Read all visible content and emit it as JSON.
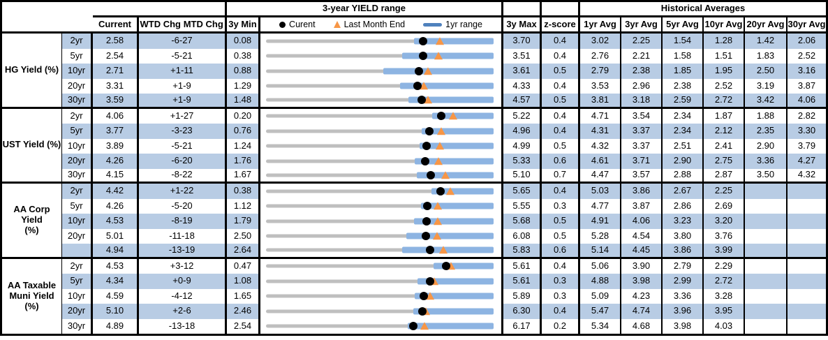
{
  "header": {
    "range_title": "3-year YIELD range",
    "hist_title": "Historical Averages",
    "current": "Current",
    "wtd": "WTD Chg",
    "mtd": "MTD Chg",
    "min": "3y Min",
    "max": "3y Max",
    "zscore": "z-score",
    "avg_cols": [
      "1yr Avg",
      "3yr Avg",
      "5yr Avg",
      "10yr Avg",
      "20yr Avg",
      "30yr Avg"
    ],
    "legend_current": "Curent",
    "legend_last_month": "Last Month End",
    "legend_range": "1yr range"
  },
  "colors": {
    "stripe": "#B8CCE4",
    "track_3y": "#BFBFBF",
    "bar_1yr": "#8DB4E2",
    "legend_bar": "#4F81BD",
    "marker_current": "#000000",
    "marker_last_month": "#F79646"
  },
  "chart_data": {
    "type": "range-dot",
    "x_unit": "yield (%)",
    "legend": [
      "Curent (black dot)",
      "Last Month End (orange triangle)",
      "1yr range (blue bar)"
    ],
    "note": "Gray track spans 3y Min to 3y Max per row; blue bar is the 1yr range; dot = current yield; triangle = last month end yield.",
    "sections": [
      {
        "label": "HG Yield (%)",
        "rows": [
          {
            "maturity": "2yr",
            "current": 2.58,
            "wtd_chg": "-6",
            "mtd_chg": "-27",
            "min_3y": 0.08,
            "max_3y": 3.7,
            "z_score": 0.4,
            "last_month_end": 2.85,
            "yr1_low": 2.43,
            "yr1_high": 3.7,
            "averages": [
              "3.02",
              "2.25",
              "1.54",
              "1.28",
              "1.42",
              "2.06"
            ]
          },
          {
            "maturity": "5yr",
            "current": 2.54,
            "wtd_chg": "-5",
            "mtd_chg": "-21",
            "min_3y": 0.38,
            "max_3y": 3.51,
            "z_score": 0.4,
            "last_month_end": 2.75,
            "yr1_low": 2.25,
            "yr1_high": 3.51,
            "averages": [
              "2.76",
              "2.21",
              "1.58",
              "1.51",
              "1.83",
              "2.52"
            ]
          },
          {
            "maturity": "10yr",
            "current": 2.71,
            "wtd_chg": "+1",
            "mtd_chg": "-11",
            "min_3y": 0.88,
            "max_3y": 3.61,
            "z_score": 0.5,
            "last_month_end": 2.82,
            "yr1_low": 2.29,
            "yr1_high": 3.61,
            "averages": [
              "2.79",
              "2.38",
              "1.85",
              "1.95",
              "2.50",
              "3.16"
            ]
          },
          {
            "maturity": "20yr",
            "current": 3.31,
            "wtd_chg": "+1",
            "mtd_chg": "-9",
            "min_3y": 1.29,
            "max_3y": 4.33,
            "z_score": 0.4,
            "last_month_end": 3.4,
            "yr1_low": 3.08,
            "yr1_high": 4.33,
            "averages": [
              "3.53",
              "2.96",
              "2.38",
              "2.52",
              "3.19",
              "3.87"
            ]
          },
          {
            "maturity": "30yr",
            "current": 3.59,
            "wtd_chg": "+1",
            "mtd_chg": "-9",
            "min_3y": 1.48,
            "max_3y": 4.57,
            "z_score": 0.5,
            "last_month_end": 3.68,
            "yr1_low": 3.41,
            "yr1_high": 4.57,
            "averages": [
              "3.81",
              "3.18",
              "2.59",
              "2.72",
              "3.42",
              "4.06"
            ]
          }
        ]
      },
      {
        "label": "UST Yield (%)",
        "rows": [
          {
            "maturity": "2yr",
            "current": 4.06,
            "wtd_chg": "+1",
            "mtd_chg": "-27",
            "min_3y": 0.2,
            "max_3y": 5.22,
            "z_score": 0.4,
            "last_month_end": 4.33,
            "yr1_low": 3.86,
            "yr1_high": 5.22,
            "averages": [
              "4.71",
              "3.54",
              "2.34",
              "1.87",
              "1.88",
              "2.82"
            ]
          },
          {
            "maturity": "5yr",
            "current": 3.77,
            "wtd_chg": "-3",
            "mtd_chg": "-23",
            "min_3y": 0.76,
            "max_3y": 4.96,
            "z_score": 0.4,
            "last_month_end": 4.0,
            "yr1_low": 3.63,
            "yr1_high": 4.96,
            "averages": [
              "4.31",
              "3.37",
              "2.34",
              "2.12",
              "2.35",
              "3.30"
            ]
          },
          {
            "maturity": "10yr",
            "current": 3.89,
            "wtd_chg": "-5",
            "mtd_chg": "-21",
            "min_3y": 1.24,
            "max_3y": 4.99,
            "z_score": 0.5,
            "last_month_end": 4.1,
            "yr1_low": 3.77,
            "yr1_high": 4.99,
            "averages": [
              "4.32",
              "3.37",
              "2.51",
              "2.41",
              "2.90",
              "3.79"
            ]
          },
          {
            "maturity": "20yr",
            "current": 4.26,
            "wtd_chg": "-6",
            "mtd_chg": "-20",
            "min_3y": 1.76,
            "max_3y": 5.33,
            "z_score": 0.6,
            "last_month_end": 4.46,
            "yr1_low": 4.09,
            "yr1_high": 5.33,
            "averages": [
              "4.61",
              "3.71",
              "2.90",
              "2.75",
              "3.36",
              "4.27"
            ]
          },
          {
            "maturity": "30yr",
            "current": 4.15,
            "wtd_chg": "-8",
            "mtd_chg": "-22",
            "min_3y": 1.67,
            "max_3y": 5.1,
            "z_score": 0.7,
            "last_month_end": 4.37,
            "yr1_low": 3.94,
            "yr1_high": 5.1,
            "averages": [
              "4.47",
              "3.57",
              "2.88",
              "2.87",
              "3.50",
              "4.32"
            ]
          }
        ]
      },
      {
        "label": "AA Corp Yield\n(%)",
        "rows": [
          {
            "maturity": "2yr",
            "current": 4.42,
            "wtd_chg": "+1",
            "mtd_chg": "-22",
            "min_3y": 0.38,
            "max_3y": 5.65,
            "z_score": 0.4,
            "last_month_end": 4.64,
            "yr1_low": 4.21,
            "yr1_high": 5.65,
            "averages": [
              "5.03",
              "3.86",
              "2.67",
              "2.25",
              "",
              ""
            ]
          },
          {
            "maturity": "5yr",
            "current": 4.26,
            "wtd_chg": "-5",
            "mtd_chg": "-20",
            "min_3y": 1.12,
            "max_3y": 5.55,
            "z_score": 0.3,
            "last_month_end": 4.46,
            "yr1_low": 4.14,
            "yr1_high": 5.55,
            "averages": [
              "4.77",
              "3.87",
              "2.86",
              "2.69",
              "",
              ""
            ]
          },
          {
            "maturity": "10yr",
            "current": 4.53,
            "wtd_chg": "-8",
            "mtd_chg": "-19",
            "min_3y": 1.79,
            "max_3y": 5.68,
            "z_score": 0.5,
            "last_month_end": 4.72,
            "yr1_low": 4.32,
            "yr1_high": 5.68,
            "averages": [
              "4.91",
              "4.06",
              "3.23",
              "3.20",
              "",
              ""
            ]
          },
          {
            "maturity": "20yr",
            "current": 5.01,
            "wtd_chg": "-11",
            "mtd_chg": "-18",
            "min_3y": 2.5,
            "max_3y": 6.08,
            "z_score": 0.5,
            "last_month_end": 5.19,
            "yr1_low": 4.71,
            "yr1_high": 6.08,
            "averages": [
              "5.28",
              "4.54",
              "3.80",
              "3.76",
              "",
              ""
            ]
          },
          {
            "maturity": "",
            "current": 4.94,
            "wtd_chg": "-13",
            "mtd_chg": "-19",
            "min_3y": 2.64,
            "max_3y": 5.83,
            "z_score": 0.6,
            "last_month_end": 5.13,
            "yr1_low": 4.55,
            "yr1_high": 5.83,
            "averages": [
              "5.14",
              "4.45",
              "3.86",
              "3.99",
              "",
              ""
            ]
          }
        ]
      },
      {
        "label": "AA Taxable\nMuni Yield\n(%)",
        "rows": [
          {
            "maturity": "2yr",
            "current": 4.53,
            "wtd_chg": "+3",
            "mtd_chg": "-12",
            "min_3y": 0.47,
            "max_3y": 5.61,
            "z_score": 0.4,
            "last_month_end": 4.65,
            "yr1_low": 4.25,
            "yr1_high": 5.61,
            "averages": [
              "5.06",
              "3.90",
              "2.79",
              "2.29",
              "",
              ""
            ]
          },
          {
            "maturity": "5yr",
            "current": 4.34,
            "wtd_chg": "+0",
            "mtd_chg": "-9",
            "min_3y": 1.08,
            "max_3y": 5.61,
            "z_score": 0.3,
            "last_month_end": 4.43,
            "yr1_low": 4.1,
            "yr1_high": 5.61,
            "averages": [
              "4.88",
              "3.98",
              "2.99",
              "2.72",
              "",
              ""
            ]
          },
          {
            "maturity": "10yr",
            "current": 4.59,
            "wtd_chg": "-4",
            "mtd_chg": "-12",
            "min_3y": 1.65,
            "max_3y": 5.89,
            "z_score": 0.3,
            "last_month_end": 4.71,
            "yr1_low": 4.42,
            "yr1_high": 5.89,
            "averages": [
              "5.09",
              "4.23",
              "3.36",
              "3.28",
              "",
              ""
            ]
          },
          {
            "maturity": "20yr",
            "current": 5.1,
            "wtd_chg": "+2",
            "mtd_chg": "-6",
            "min_3y": 2.46,
            "max_3y": 6.3,
            "z_score": 0.4,
            "last_month_end": 5.16,
            "yr1_low": 4.94,
            "yr1_high": 6.3,
            "averages": [
              "5.47",
              "4.74",
              "3.96",
              "3.95",
              "",
              ""
            ]
          },
          {
            "maturity": "30yr",
            "current": 4.89,
            "wtd_chg": "-13",
            "mtd_chg": "-18",
            "min_3y": 2.54,
            "max_3y": 6.17,
            "z_score": 0.2,
            "last_month_end": 5.07,
            "yr1_low": 4.8,
            "yr1_high": 6.17,
            "averages": [
              "5.34",
              "4.68",
              "3.98",
              "4.03",
              "",
              ""
            ]
          }
        ]
      }
    ]
  }
}
